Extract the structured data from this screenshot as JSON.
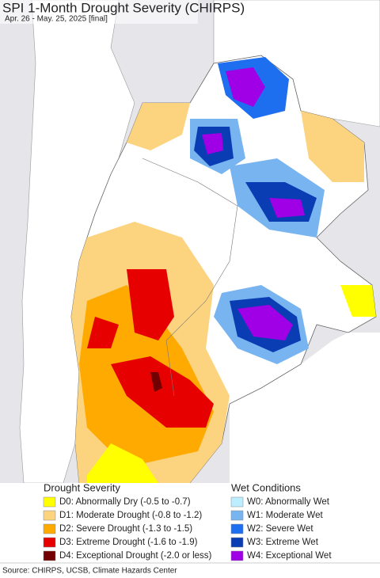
{
  "header": {
    "title": "SPI 1-Month Drought Severity (CHIRPS)",
    "subtitle": "Apr. 26 - May. 25, 2025 [final]"
  },
  "legend": {
    "drought": {
      "title": "Drought Severity",
      "items": [
        {
          "label": "D0: Abnormally Dry (-0.5 to -0.7)",
          "color": "#ffff00"
        },
        {
          "label": "D1: Moderate Drought (-0.8 to -1.2)",
          "color": "#fcd37f"
        },
        {
          "label": "D2: Severe Drought (-1.3 to -1.5)",
          "color": "#ffaa00"
        },
        {
          "label": "D3: Extreme Drought (-1.6 to -1.9)",
          "color": "#e60000"
        },
        {
          "label": "D4: Exceptional Drought (-2.0 or less)",
          "color": "#730000"
        }
      ]
    },
    "wet": {
      "title": "Wet Conditions",
      "items": [
        {
          "label": "W0: Abnormally Wet",
          "color": "#bdeeff"
        },
        {
          "label": "W1: Moderate Wet",
          "color": "#78b4f0"
        },
        {
          "label": "W2: Severe Wet",
          "color": "#1e6ef0"
        },
        {
          "label": "W3: Extreme Wet",
          "color": "#0a3cb4"
        },
        {
          "label": "W4: Exceptional Wet",
          "color": "#a000e6"
        }
      ]
    }
  },
  "footer": {
    "source": "Source: CHIRPS, UCSB, Climate Hazards Center"
  }
}
